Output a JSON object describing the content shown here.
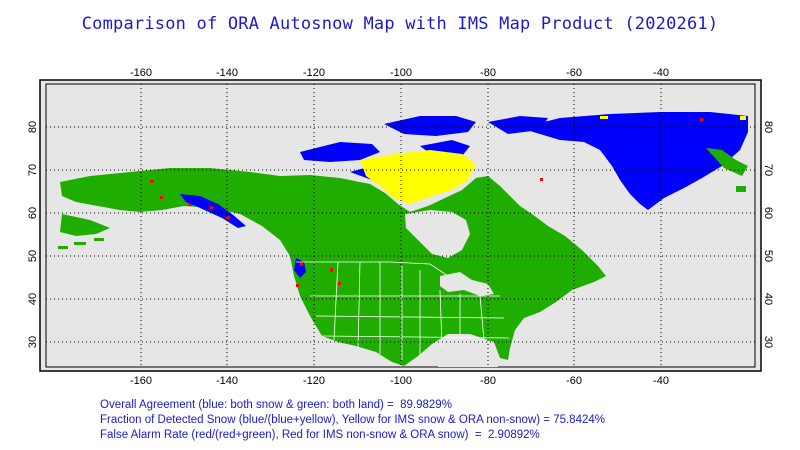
{
  "title": "Comparison of ORA Autosnow Map with IMS Map Product (2020261)",
  "map": {
    "lon_ticks": [
      "-160",
      "-140",
      "-120",
      "-100",
      "-80",
      "-60",
      "-40"
    ],
    "lat_ticks": [
      "80",
      "70",
      "60",
      "50",
      "40",
      "30"
    ],
    "colors": {
      "background": "#e6e6e6",
      "both_snow": "#0000ff",
      "both_land": "#1fae00",
      "ims_snow_ora_nonsnow": "#ffff00",
      "ims_nonsnow_ora_snow": "#ff0000",
      "grid": "#000000",
      "border": "#ffffff"
    }
  },
  "stats": {
    "agreement": "Overall Agreement (blue: both snow & green: both land) =  89.9829%",
    "detected": "Fraction of Detected Snow (blue/(blue+yellow), Yellow for IMS snow & ORA non-snow) = 75.8424%",
    "false_alarm": "False Alarm Rate (red/(red+green), Red for IMS non-snow & ORA snow)  =  2.90892%"
  }
}
